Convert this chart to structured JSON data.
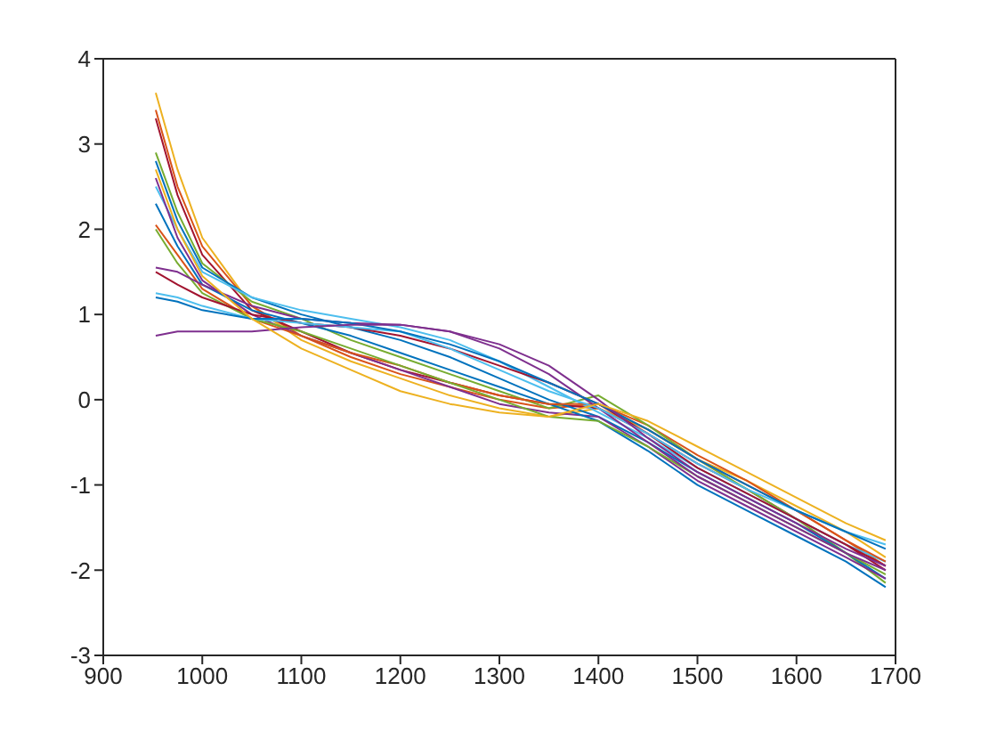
{
  "chart_data": {
    "type": "line",
    "x": [
      953,
      975,
      1000,
      1050,
      1100,
      1150,
      1200,
      1250,
      1300,
      1350,
      1400,
      1450,
      1500,
      1550,
      1600,
      1650,
      1690
    ],
    "xlim": [
      900,
      1700
    ],
    "xticks": [
      900,
      1000,
      1100,
      1200,
      1300,
      1400,
      1500,
      1600,
      1700
    ],
    "ylim": [
      -3,
      4
    ],
    "yticks": [
      -3,
      -2,
      -1,
      0,
      1,
      2,
      3,
      4
    ],
    "grid": false,
    "legend": false,
    "marker": "none",
    "line_style": "solid",
    "series": [
      {
        "color": "#edb120",
        "values": [
          3.6,
          2.7,
          1.9,
          1.1,
          0.7,
          0.45,
          0.25,
          0.05,
          -0.1,
          -0.2,
          -0.1,
          -0.35,
          -0.7,
          -0.95,
          -1.25,
          -1.55,
          -1.85
        ]
      },
      {
        "color": "#d95319",
        "values": [
          3.4,
          2.5,
          1.8,
          1.1,
          0.75,
          0.5,
          0.3,
          0.15,
          0.0,
          -0.1,
          -0.05,
          -0.3,
          -0.65,
          -0.95,
          -1.3,
          -1.65,
          -1.95
        ]
      },
      {
        "color": "#a2142f",
        "values": [
          3.3,
          2.4,
          1.7,
          1.05,
          0.8,
          0.55,
          0.35,
          0.2,
          0.05,
          -0.05,
          -0.1,
          -0.4,
          -0.75,
          -1.05,
          -1.4,
          -1.7,
          -2.0
        ]
      },
      {
        "color": "#77ac30",
        "values": [
          2.9,
          2.2,
          1.6,
          1.15,
          0.95,
          0.7,
          0.5,
          0.3,
          0.1,
          -0.1,
          0.05,
          -0.3,
          -0.7,
          -1.05,
          -1.4,
          -1.8,
          -2.15
        ]
      },
      {
        "color": "#0072bd",
        "values": [
          2.8,
          2.1,
          1.55,
          1.2,
          1.0,
          0.85,
          0.7,
          0.5,
          0.25,
          0.0,
          -0.2,
          -0.5,
          -0.85,
          -1.15,
          -1.45,
          -1.8,
          -2.1
        ]
      },
      {
        "color": "#4dbeee",
        "values": [
          2.5,
          2.0,
          1.5,
          1.2,
          1.05,
          0.95,
          0.85,
          0.7,
          0.45,
          0.15,
          -0.15,
          -0.45,
          -0.8,
          -1.1,
          -1.4,
          -1.7,
          -1.9
        ]
      },
      {
        "color": "#7e2f8e",
        "values": [
          2.6,
          1.9,
          1.4,
          1.0,
          0.75,
          0.55,
          0.35,
          0.15,
          -0.05,
          -0.15,
          -0.2,
          -0.55,
          -0.95,
          -1.25,
          -1.55,
          -1.85,
          -2.1
        ]
      },
      {
        "color": "#0072bd",
        "values": [
          2.3,
          1.8,
          1.35,
          1.05,
          0.9,
          0.75,
          0.55,
          0.35,
          0.15,
          -0.05,
          -0.25,
          -0.6,
          -1.0,
          -1.3,
          -1.6,
          -1.9,
          -2.2
        ]
      },
      {
        "color": "#d95319",
        "values": [
          2.05,
          1.7,
          1.3,
          0.95,
          0.75,
          0.55,
          0.4,
          0.2,
          0.05,
          -0.05,
          -0.05,
          -0.35,
          -0.7,
          -1.0,
          -1.3,
          -1.65,
          -1.9
        ]
      },
      {
        "color": "#77ac30",
        "values": [
          2.0,
          1.6,
          1.25,
          0.95,
          0.8,
          0.6,
          0.4,
          0.2,
          0.0,
          -0.2,
          -0.25,
          -0.55,
          -0.9,
          -1.2,
          -1.5,
          -1.8,
          -2.05
        ]
      },
      {
        "color": "#7e2f8e",
        "values": [
          1.55,
          1.5,
          1.35,
          1.1,
          0.95,
          0.9,
          0.88,
          0.8,
          0.6,
          0.3,
          -0.1,
          -0.5,
          -0.9,
          -1.2,
          -1.5,
          -1.8,
          -2.0
        ]
      },
      {
        "color": "#a2142f",
        "values": [
          1.5,
          1.35,
          1.2,
          1.0,
          0.9,
          0.85,
          0.75,
          0.6,
          0.4,
          0.2,
          -0.05,
          -0.4,
          -0.8,
          -1.1,
          -1.4,
          -1.7,
          -1.95
        ]
      },
      {
        "color": "#4dbeee",
        "values": [
          1.25,
          1.2,
          1.1,
          0.95,
          0.9,
          0.85,
          0.8,
          0.6,
          0.35,
          0.1,
          -0.1,
          -0.4,
          -0.75,
          -1.05,
          -1.3,
          -1.55,
          -1.7
        ]
      },
      {
        "color": "#0072bd",
        "values": [
          1.2,
          1.15,
          1.05,
          0.95,
          0.95,
          0.9,
          0.8,
          0.65,
          0.45,
          0.2,
          -0.05,
          -0.35,
          -0.7,
          -1.0,
          -1.3,
          -1.55,
          -1.75
        ]
      },
      {
        "color": "#7e2f8e",
        "values": [
          0.75,
          0.8,
          0.8,
          0.8,
          0.85,
          0.88,
          0.88,
          0.8,
          0.65,
          0.4,
          0.0,
          -0.45,
          -0.85,
          -1.15,
          -1.45,
          -1.75,
          -1.95
        ]
      },
      {
        "color": "#edb120",
        "values": [
          2.7,
          2.0,
          1.45,
          0.95,
          0.6,
          0.35,
          0.1,
          -0.05,
          -0.15,
          -0.2,
          -0.05,
          -0.25,
          -0.55,
          -0.85,
          -1.15,
          -1.45,
          -1.65
        ]
      }
    ]
  }
}
